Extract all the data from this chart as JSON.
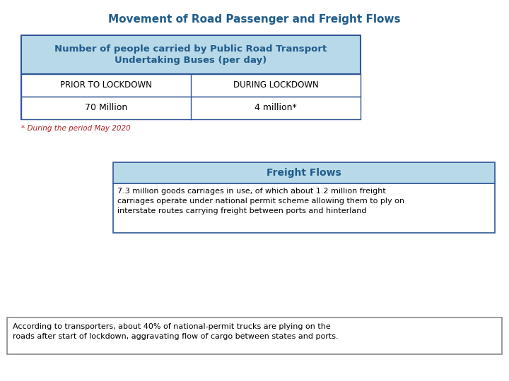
{
  "title": "Movement of Road Passenger and Freight Flows",
  "title_color": "#1F5C8B",
  "title_fontsize": 11,
  "section1_header": "Number of people carried by Public Road Transport\nUndertaking Buses (per day)",
  "section1_header_color": "#1F5C8B",
  "section1_header_bg": "#B8D9E8",
  "col1_header": "PRIOR TO LOCKDOWN",
  "col2_header": "DURING LOCKDOWN",
  "col1_value": "70 Million",
  "col2_value": "4 million*",
  "footnote": "* During the period May 2020",
  "footnote_color": "#B22222",
  "section2_header": "Freight Flows",
  "section2_header_color": "#1F5C8B",
  "section2_header_bg": "#B8D9E8",
  "section2_body": "7.3 million goods carriages in use, of which about 1.2 million freight\ncarriages operate under national permit scheme allowing them to ply on\ninterstate routes carrying freight between ports and hinterland",
  "section3_body": "According to transporters, about 40% of national-permit trucks are plying on the\nroads after start of lockdown, aggravating flow of cargo between states and ports.",
  "bg_color": "#FFFFFF",
  "table_border_color": "#2F5597",
  "table_text_color": "#000000",
  "section2_text_color": "#000000",
  "section3_text_color": "#000000"
}
